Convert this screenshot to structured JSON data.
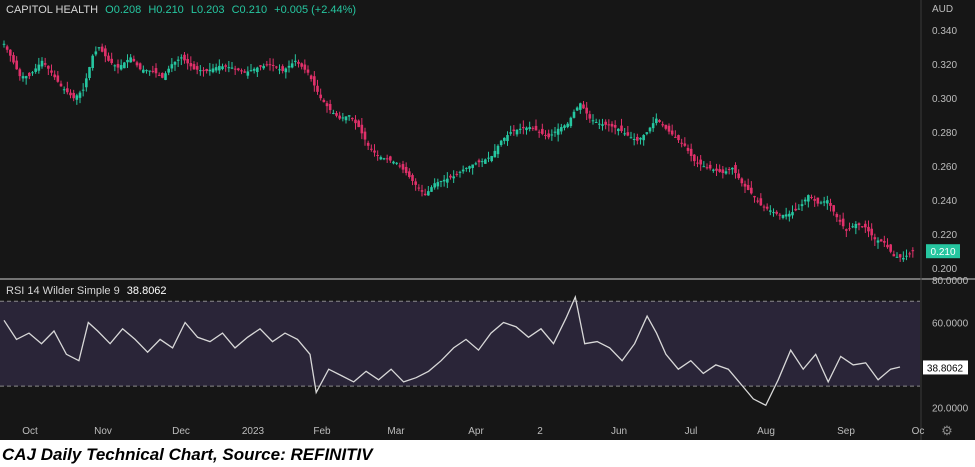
{
  "header": {
    "symbol": "CAPITOL HEALTH",
    "open": "O0.208",
    "high": "H0.210",
    "low": "L0.203",
    "close": "C0.210",
    "change": "+0.005 (+2.44%)"
  },
  "rsi_header": {
    "label": "RSI 14 Wilder Simple 9",
    "value": "38.8062"
  },
  "caption": "CAJ Daily Technical Chart, Source: REFINITIV",
  "colors": {
    "background": "#161616",
    "up": "#26c6a0",
    "down": "#e0306a",
    "rsi_line": "#d8d8d8",
    "rsi_band": "#2a2538",
    "last_price_bg": "#26c6a0"
  },
  "chart_data": [
    {
      "type": "candlestick",
      "currency_label": "AUD",
      "y_ticks": [
        "0.340",
        "0.320",
        "0.300",
        "0.280",
        "0.260",
        "0.240",
        "0.220",
        "0.200"
      ],
      "ylim": [
        0.196,
        0.346
      ],
      "last_price": "0.210",
      "x_ticks": [
        "Oct",
        "Nov",
        "Dec",
        "2023",
        "Feb",
        "Mar",
        "Apr",
        "2",
        "Jun",
        "Jul",
        "Aug",
        "Sep",
        "Oc"
      ],
      "close_points": [
        [
          0,
          0.332
        ],
        [
          2,
          0.325
        ],
        [
          5,
          0.313
        ],
        [
          8,
          0.313
        ],
        [
          12,
          0.322
        ],
        [
          15,
          0.315
        ],
        [
          18,
          0.307
        ],
        [
          22,
          0.3
        ],
        [
          25,
          0.305
        ],
        [
          28,
          0.325
        ],
        [
          30,
          0.33
        ],
        [
          33,
          0.322
        ],
        [
          36,
          0.318
        ],
        [
          40,
          0.324
        ],
        [
          43,
          0.317
        ],
        [
          47,
          0.316
        ],
        [
          50,
          0.312
        ],
        [
          53,
          0.32
        ],
        [
          56,
          0.324
        ],
        [
          60,
          0.317
        ],
        [
          64,
          0.316
        ],
        [
          68,
          0.319
        ],
        [
          72,
          0.318
        ],
        [
          76,
          0.315
        ],
        [
          80,
          0.318
        ],
        [
          84,
          0.32
        ],
        [
          88,
          0.316
        ],
        [
          92,
          0.322
        ],
        [
          96,
          0.315
        ],
        [
          100,
          0.3
        ],
        [
          103,
          0.293
        ],
        [
          106,
          0.288
        ],
        [
          109,
          0.29
        ],
        [
          112,
          0.283
        ],
        [
          115,
          0.272
        ],
        [
          118,
          0.266
        ],
        [
          121,
          0.264
        ],
        [
          124,
          0.262
        ],
        [
          127,
          0.256
        ],
        [
          130,
          0.249
        ],
        [
          133,
          0.243
        ],
        [
          136,
          0.25
        ],
        [
          139,
          0.252
        ],
        [
          142,
          0.254
        ],
        [
          145,
          0.258
        ],
        [
          148,
          0.261
        ],
        [
          151,
          0.263
        ],
        [
          154,
          0.266
        ],
        [
          157,
          0.275
        ],
        [
          160,
          0.28
        ],
        [
          163,
          0.282
        ],
        [
          166,
          0.283
        ],
        [
          169,
          0.28
        ],
        [
          172,
          0.277
        ],
        [
          175,
          0.282
        ],
        [
          178,
          0.285
        ],
        [
          180,
          0.292
        ],
        [
          182,
          0.297
        ],
        [
          185,
          0.288
        ],
        [
          188,
          0.285
        ],
        [
          191,
          0.284
        ],
        [
          194,
          0.282
        ],
        [
          197,
          0.278
        ],
        [
          200,
          0.275
        ],
        [
          203,
          0.28
        ],
        [
          206,
          0.288
        ],
        [
          209,
          0.282
        ],
        [
          212,
          0.277
        ],
        [
          215,
          0.272
        ],
        [
          218,
          0.263
        ],
        [
          221,
          0.26
        ],
        [
          224,
          0.258
        ],
        [
          227,
          0.256
        ],
        [
          230,
          0.259
        ],
        [
          233,
          0.25
        ],
        [
          236,
          0.244
        ],
        [
          239,
          0.237
        ],
        [
          242,
          0.234
        ],
        [
          245,
          0.231
        ],
        [
          248,
          0.232
        ],
        [
          251,
          0.235
        ],
        [
          254,
          0.243
        ],
        [
          257,
          0.238
        ],
        [
          260,
          0.24
        ],
        [
          263,
          0.23
        ],
        [
          266,
          0.222
        ],
        [
          269,
          0.226
        ],
        [
          272,
          0.224
        ],
        [
          275,
          0.217
        ],
        [
          278,
          0.215
        ],
        [
          281,
          0.207
        ],
        [
          284,
          0.206
        ],
        [
          287,
          0.21
        ]
      ]
    },
    {
      "type": "line",
      "title": "RSI 14 Wilder Simple 9",
      "current_value": "38.8062",
      "y_ticks": [
        "80.0000",
        "60.0000",
        "20.0000"
      ],
      "ylim": [
        15,
        80
      ],
      "reference_lines": [
        70,
        30
      ],
      "points": [
        [
          0,
          61
        ],
        [
          4,
          52
        ],
        [
          8,
          55
        ],
        [
          12,
          50
        ],
        [
          16,
          56
        ],
        [
          20,
          45
        ],
        [
          24,
          42
        ],
        [
          27,
          60
        ],
        [
          30,
          56
        ],
        [
          34,
          50
        ],
        [
          38,
          57
        ],
        [
          42,
          52
        ],
        [
          46,
          46
        ],
        [
          50,
          52
        ],
        [
          54,
          48
        ],
        [
          58,
          60
        ],
        [
          62,
          53
        ],
        [
          66,
          51
        ],
        [
          70,
          55
        ],
        [
          74,
          48
        ],
        [
          78,
          53
        ],
        [
          82,
          57
        ],
        [
          86,
          51
        ],
        [
          90,
          55
        ],
        [
          94,
          52
        ],
        [
          98,
          45
        ],
        [
          100,
          27
        ],
        [
          104,
          38
        ],
        [
          108,
          35
        ],
        [
          112,
          32
        ],
        [
          116,
          37
        ],
        [
          120,
          33
        ],
        [
          124,
          38
        ],
        [
          128,
          32
        ],
        [
          132,
          34
        ],
        [
          136,
          37
        ],
        [
          140,
          42
        ],
        [
          144,
          48
        ],
        [
          148,
          52
        ],
        [
          152,
          47
        ],
        [
          156,
          55
        ],
        [
          160,
          60
        ],
        [
          164,
          58
        ],
        [
          168,
          53
        ],
        [
          172,
          57
        ],
        [
          176,
          50
        ],
        [
          180,
          62
        ],
        [
          183,
          72
        ],
        [
          186,
          50
        ],
        [
          190,
          51
        ],
        [
          194,
          48
        ],
        [
          198,
          42
        ],
        [
          202,
          50
        ],
        [
          206,
          63
        ],
        [
          209,
          55
        ],
        [
          212,
          45
        ],
        [
          216,
          38
        ],
        [
          220,
          42
        ],
        [
          224,
          36
        ],
        [
          228,
          40
        ],
        [
          232,
          38
        ],
        [
          236,
          31
        ],
        [
          240,
          24
        ],
        [
          244,
          21
        ],
        [
          248,
          33
        ],
        [
          252,
          47
        ],
        [
          256,
          38
        ],
        [
          260,
          45
        ],
        [
          264,
          32
        ],
        [
          268,
          44
        ],
        [
          272,
          40
        ],
        [
          276,
          41
        ],
        [
          280,
          33
        ],
        [
          284,
          38
        ],
        [
          287,
          39
        ]
      ]
    }
  ]
}
